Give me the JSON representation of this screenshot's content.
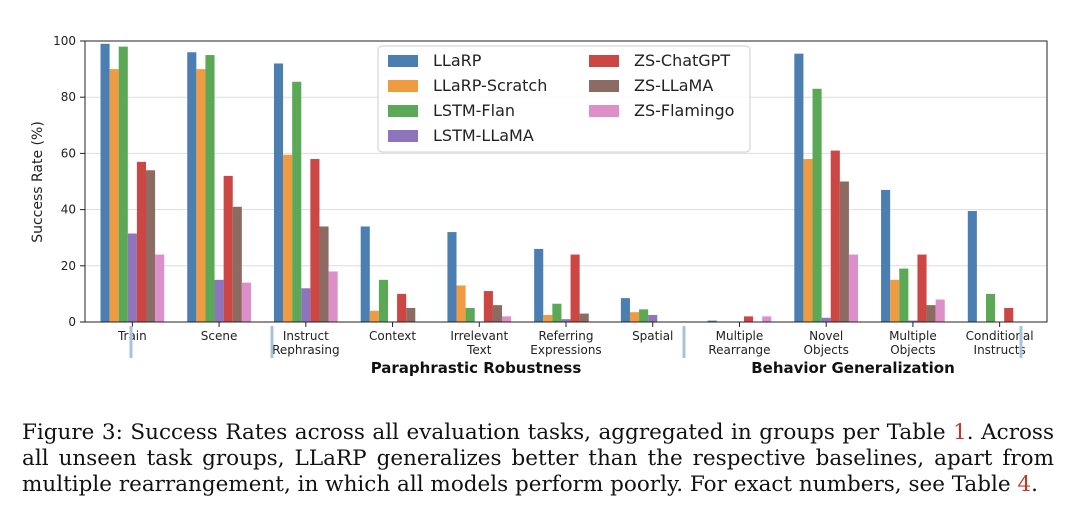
{
  "chart_data": {
    "type": "bar",
    "ylabel": "Success Rate (%)",
    "ylim": [
      0,
      100
    ],
    "yticks": [
      "0",
      "20",
      "40",
      "60",
      "80",
      "100"
    ],
    "categories": [
      {
        "lines": [
          "Train"
        ]
      },
      {
        "lines": [
          "Scene"
        ]
      },
      {
        "lines": [
          "Instruct",
          "Rephrasing"
        ]
      },
      {
        "lines": [
          "Context"
        ]
      },
      {
        "lines": [
          "Irrelevant",
          "Text"
        ]
      },
      {
        "lines": [
          "Referring",
          "Expressions"
        ]
      },
      {
        "lines": [
          "Spatial"
        ]
      },
      {
        "lines": [
          "Multiple",
          "Rearrange"
        ]
      },
      {
        "lines": [
          "Novel",
          "Objects"
        ]
      },
      {
        "lines": [
          "Multiple",
          "Objects"
        ]
      },
      {
        "lines": [
          "Conditional",
          "Instructs"
        ]
      }
    ],
    "series": [
      {
        "name": "LLaRP",
        "color": "#4c7fb1",
        "values": [
          99,
          96,
          92,
          34,
          32,
          26,
          8.5,
          0.5,
          95.5,
          47,
          39.5
        ]
      },
      {
        "name": "LLaRP-Scratch",
        "color": "#ef9b42",
        "values": [
          90,
          90,
          59.5,
          4,
          13,
          2.5,
          3.5,
          0,
          58,
          15,
          0
        ]
      },
      {
        "name": "LSTM-Flan",
        "color": "#5ba857",
        "values": [
          98,
          95,
          85.5,
          15,
          5,
          6.5,
          4.5,
          0,
          83,
          19,
          10
        ]
      },
      {
        "name": "LSTM-LLaMA",
        "color": "#8e74bd",
        "values": [
          31.5,
          15,
          12,
          0,
          0,
          1,
          2.5,
          0,
          1.5,
          0.5,
          0
        ]
      },
      {
        "name": "ZS-ChatGPT",
        "color": "#cc4643",
        "values": [
          57,
          52,
          58,
          10,
          11,
          24,
          0,
          2,
          61,
          24,
          5
        ]
      },
      {
        "name": "ZS-LLaMA",
        "color": "#8c6b62",
        "values": [
          54,
          41,
          34,
          5,
          6,
          3,
          0,
          0,
          50,
          6,
          0
        ]
      },
      {
        "name": "ZS-Flamingo",
        "color": "#dd8fca",
        "values": [
          24,
          14,
          18,
          0,
          2,
          0,
          0,
          2,
          24,
          8,
          0
        ]
      }
    ],
    "groups": [
      {
        "label": "Paraphrastic Robustness"
      },
      {
        "label": "Behavior Generalization"
      }
    ],
    "legend_position": "top-center"
  },
  "caption": {
    "text_before": "Figure 3: Success Rates across all evaluation tasks, aggregated in groups per Table ",
    "ref1": "1",
    "text_middle": ". Across all unseen task groups, LLaRP generalizes better than the respective baselines, apart from multiple rearrangement, in which all models perform poorly. For exact numbers, see Table ",
    "ref2": "4",
    "text_after": "."
  }
}
